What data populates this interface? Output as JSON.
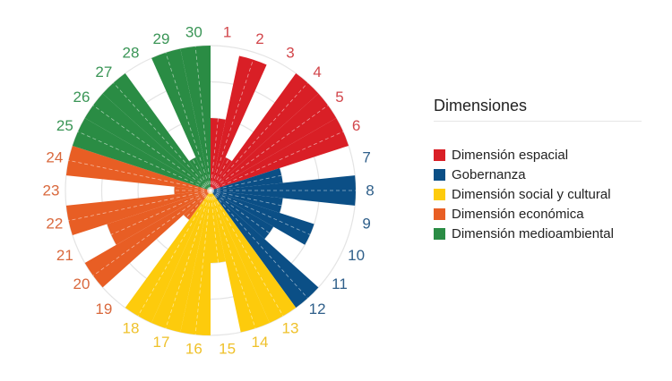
{
  "chart_data": {
    "type": "polar-bar",
    "title": "",
    "legend_title": "Dimensiones",
    "legend_position": "right",
    "radial_range": [
      0,
      4
    ],
    "grid_rings": 4,
    "categories": [
      "1",
      "2",
      "3",
      "4",
      "5",
      "6",
      "7",
      "8",
      "9",
      "10",
      "11",
      "12",
      "13",
      "14",
      "15",
      "16",
      "17",
      "18",
      "19",
      "20",
      "21",
      "22",
      "23",
      "24",
      "25",
      "26",
      "27",
      "28",
      "29",
      "30"
    ],
    "series": [
      {
        "name": "Dimensión espacial",
        "color": "#D91F26",
        "categories": [
          "1",
          "2",
          "3",
          "4",
          "5",
          "6"
        ],
        "values": [
          2,
          3.8,
          1,
          4,
          4,
          4
        ]
      },
      {
        "name": "Gobernanza",
        "color": "#0B4F86",
        "categories": [
          "7",
          "8",
          "9",
          "10",
          "11",
          "12"
        ],
        "values": [
          2,
          4,
          2,
          3,
          2,
          4
        ]
      },
      {
        "name": "Dimensión social y cultural",
        "color": "#FDCB0C",
        "categories": [
          "13",
          "14",
          "15",
          "16",
          "17",
          "18"
        ],
        "values": [
          4,
          4,
          2,
          4,
          4,
          4
        ]
      },
      {
        "name": "Dimensión económica",
        "color": "#E85E24",
        "categories": [
          "19",
          "20",
          "21",
          "22",
          "23",
          "24"
        ],
        "values": [
          1,
          4,
          3,
          4,
          1,
          4
        ]
      },
      {
        "name": "Dimensión medioambiental",
        "color": "#2A8C44",
        "categories": [
          "25",
          "26",
          "27",
          "28",
          "29",
          "30"
        ],
        "values": [
          4,
          4,
          4,
          1,
          4,
          4
        ]
      }
    ],
    "label_colors": {
      "Dimensión espacial": "#D2464B",
      "Gobernanza": "#2F5F8A",
      "Dimensión social y cultural": "#EFC12A",
      "Dimensión económica": "#D9683C",
      "Dimensión medioambiental": "#3A9556"
    }
  },
  "legend": {
    "title": "Dimensiones",
    "items": [
      {
        "label": "Dimensión espacial",
        "color": "#D91F26"
      },
      {
        "label": "Gobernanza",
        "color": "#0B4F86"
      },
      {
        "label": "Dimensión social y cultural",
        "color": "#FDCB0C"
      },
      {
        "label": "Dimensión económica",
        "color": "#E85E24"
      },
      {
        "label": "Dimensión medioambiental",
        "color": "#2A8C44"
      }
    ]
  }
}
